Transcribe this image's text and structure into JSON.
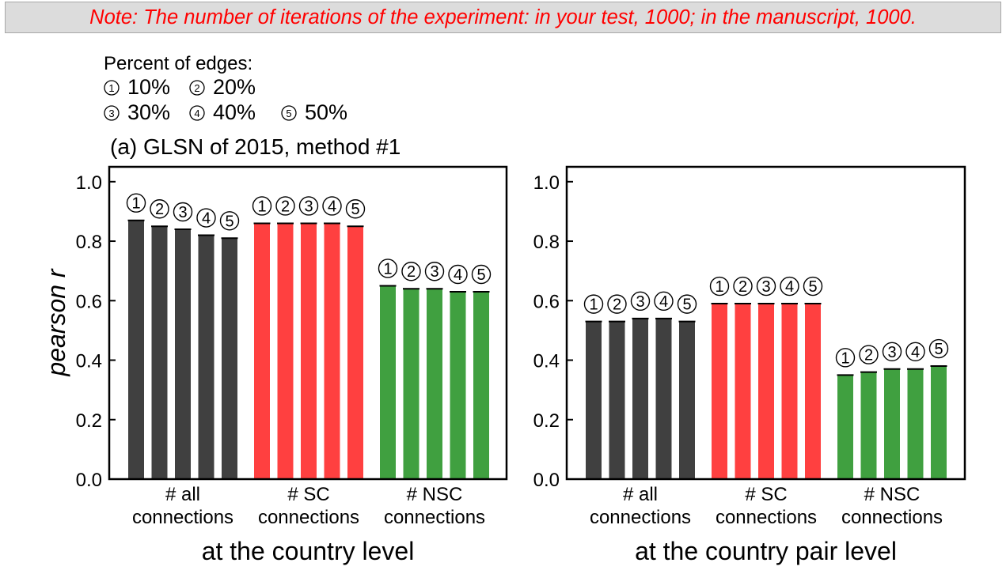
{
  "note": "Note: The number of iterations of the experiment: in your test, 1000; in the manuscript, 1000.",
  "legend": {
    "title": "Percent of edges:",
    "items": [
      {
        "marker": "①",
        "label": "10%"
      },
      {
        "marker": "②",
        "label": "20%"
      },
      {
        "marker": "③",
        "label": "30%"
      },
      {
        "marker": "④",
        "label": "40%"
      },
      {
        "marker": "⑤",
        "label": "50%"
      }
    ]
  },
  "colors": {
    "all": "#404040",
    "SC": "#ff4040",
    "NSC": "#40a040",
    "axis": "#000000"
  },
  "chart_data": [
    {
      "type": "bar",
      "title": "(a) GLSN of 2015, method #1",
      "xlabel": "at the country level",
      "ylabel": "pearson r",
      "ylim": [
        0,
        1.05
      ],
      "yticks": [
        "0.0",
        "0.2",
        "0.4",
        "0.6",
        "0.8",
        "1.0"
      ],
      "bar_labels": [
        "1",
        "2",
        "3",
        "4",
        "5"
      ],
      "groups": [
        {
          "label_lines": [
            "# all",
            "connections"
          ],
          "color_key": "all",
          "values": [
            0.87,
            0.85,
            0.84,
            0.82,
            0.81
          ]
        },
        {
          "label_lines": [
            "# SC",
            "connections"
          ],
          "color_key": "SC",
          "values": [
            0.86,
            0.86,
            0.86,
            0.86,
            0.85
          ]
        },
        {
          "label_lines": [
            "# NSC",
            "connections"
          ],
          "color_key": "NSC",
          "values": [
            0.65,
            0.64,
            0.64,
            0.63,
            0.63
          ]
        }
      ]
    },
    {
      "type": "bar",
      "title": "",
      "xlabel": "at the country pair level",
      "ylabel": "",
      "ylim": [
        0,
        1.05
      ],
      "yticks": [
        "0.0",
        "0.2",
        "0.4",
        "0.6",
        "0.8",
        "1.0"
      ],
      "bar_labels": [
        "1",
        "2",
        "3",
        "4",
        "5"
      ],
      "groups": [
        {
          "label_lines": [
            "# all",
            "connections"
          ],
          "color_key": "all",
          "values": [
            0.53,
            0.53,
            0.54,
            0.54,
            0.53
          ]
        },
        {
          "label_lines": [
            "# SC",
            "connections"
          ],
          "color_key": "SC",
          "values": [
            0.59,
            0.59,
            0.59,
            0.59,
            0.59
          ]
        },
        {
          "label_lines": [
            "# NSC",
            "connections"
          ],
          "color_key": "NSC",
          "values": [
            0.35,
            0.36,
            0.37,
            0.37,
            0.38
          ]
        }
      ]
    }
  ]
}
